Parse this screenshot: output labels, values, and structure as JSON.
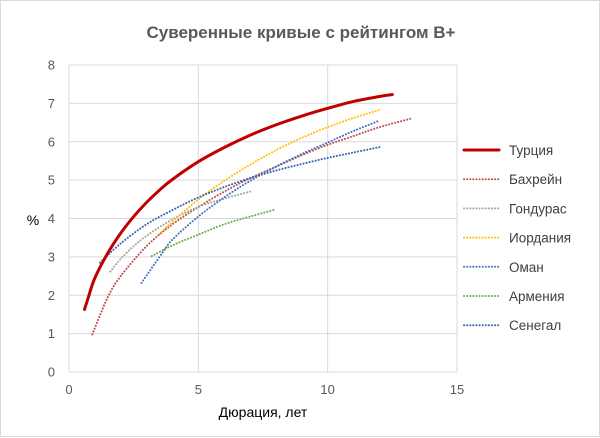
{
  "chart_data": {
    "type": "line",
    "title": "Суверенные кривые с рейтингом B+",
    "xlabel": "Дюрация, лет",
    "ylabel": "%",
    "xlim": [
      0,
      15
    ],
    "ylim": [
      0,
      8
    ],
    "x_ticks": [
      0,
      5,
      10,
      15
    ],
    "y_ticks": [
      0,
      1,
      2,
      3,
      4,
      5,
      6,
      7,
      8
    ],
    "grid": true,
    "legend_position": "right",
    "series": [
      {
        "name": "Турция",
        "color": "#c00000",
        "style": "solid",
        "width": 3,
        "x": [
          0.6,
          0.75,
          1.0,
          1.5,
          2.0,
          2.5,
          3.0,
          3.5,
          4.0,
          5.0,
          6.0,
          7.0,
          8.0,
          9.0,
          10.0,
          11.0,
          12.0,
          12.5
        ],
        "y": [
          1.63,
          1.95,
          2.45,
          3.1,
          3.62,
          4.05,
          4.42,
          4.74,
          5.02,
          5.48,
          5.85,
          6.17,
          6.44,
          6.67,
          6.87,
          7.05,
          7.18,
          7.23
        ]
      },
      {
        "name": "Бахрейн",
        "color": "#c0504d",
        "style": "dotted",
        "width": 1.5,
        "x": [
          0.9,
          1.5,
          2.0,
          3.0,
          4.0,
          5.0,
          6.0,
          7.0,
          8.0,
          9.0,
          10.0,
          11.0,
          12.0,
          13.2
        ],
        "y": [
          0.98,
          1.95,
          2.5,
          3.28,
          3.85,
          4.3,
          4.7,
          5.05,
          5.35,
          5.65,
          5.92,
          6.15,
          6.38,
          6.6
        ]
      },
      {
        "name": "Гондурас",
        "color": "#a5a5a5",
        "style": "dotted",
        "width": 1.5,
        "x": [
          1.6,
          2.0,
          2.5,
          3.0,
          4.0,
          5.0,
          6.0,
          7.0
        ],
        "y": [
          2.62,
          2.95,
          3.28,
          3.55,
          3.98,
          4.3,
          4.52,
          4.7
        ]
      },
      {
        "name": "Иордания",
        "color": "#ffc000",
        "style": "dotted",
        "width": 1.5,
        "x": [
          3.5,
          4.0,
          5.0,
          6.0,
          7.0,
          8.0,
          9.0,
          10.0,
          11.0,
          12.0
        ],
        "y": [
          3.6,
          3.92,
          4.5,
          4.98,
          5.4,
          5.78,
          6.1,
          6.38,
          6.62,
          6.83
        ]
      },
      {
        "name": "Оман",
        "color": "#4472c4",
        "style": "dotted",
        "width": 1.5,
        "x": [
          2.8,
          3.5,
          4.0,
          5.0,
          6.0,
          7.0,
          8.0,
          9.0,
          10.0,
          11.0,
          12.0
        ],
        "y": [
          2.32,
          3.0,
          3.45,
          4.05,
          4.55,
          4.98,
          5.35,
          5.68,
          5.98,
          6.28,
          6.55
        ]
      },
      {
        "name": "Армения",
        "color": "#70ad47",
        "style": "dotted",
        "width": 1.5,
        "x": [
          3.2,
          4.0,
          5.0,
          6.0,
          7.0,
          8.0
        ],
        "y": [
          3.02,
          3.3,
          3.58,
          3.85,
          4.05,
          4.24
        ]
      },
      {
        "name": "Сенегал",
        "color": "#3a64b4",
        "style": "dotted",
        "width": 1.5,
        "x": [
          1.2,
          2.0,
          3.0,
          4.0,
          5.0,
          6.0,
          7.0,
          8.0,
          9.0,
          10.0,
          11.0,
          12.0
        ],
        "y": [
          2.85,
          3.35,
          3.85,
          4.22,
          4.55,
          4.82,
          5.05,
          5.25,
          5.42,
          5.58,
          5.72,
          5.86
        ]
      }
    ]
  }
}
